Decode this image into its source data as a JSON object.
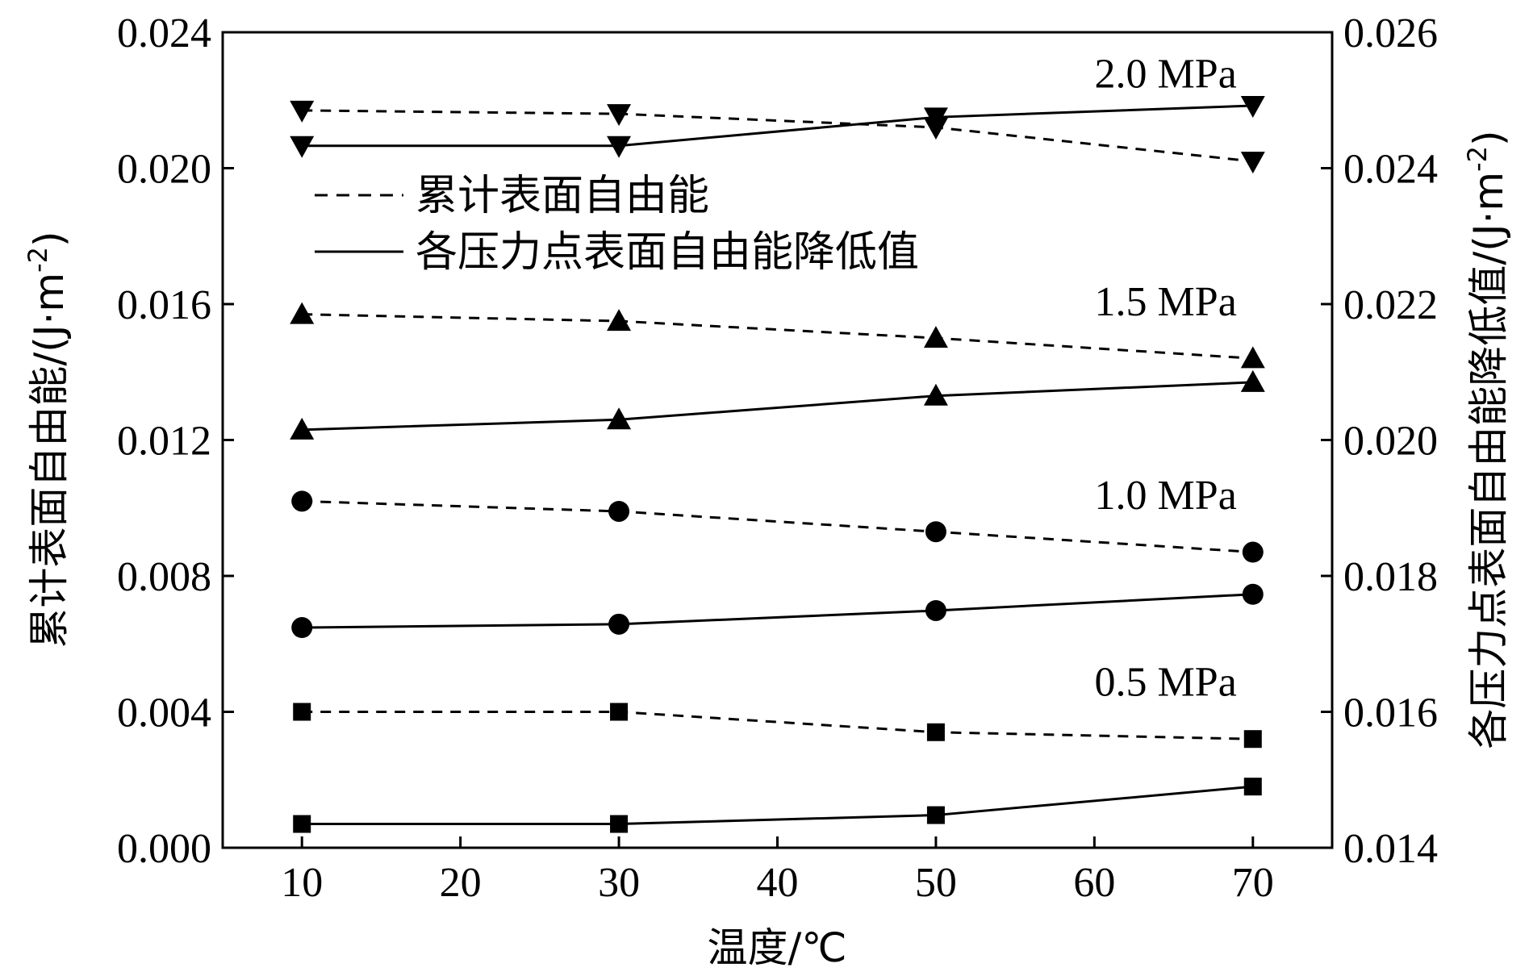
{
  "chart_data": {
    "type": "line",
    "xlabel": "温度/℃",
    "ylabel_left": "累计表面自由能/(J·m",
    "ylabel_left_sup": "-2",
    "ylabel_left_close": ")",
    "ylabel_right": "各压力点表面自由能降低值/(J·m",
    "ylabel_right_sup": "-2",
    "ylabel_right_close": ")",
    "xlim": [
      5,
      75
    ],
    "x_ticks": [
      10,
      20,
      30,
      40,
      50,
      60,
      70
    ],
    "x_tick_labels": [
      "10",
      "20",
      "30",
      "40",
      "50",
      "60",
      "70"
    ],
    "ylim_left": [
      0,
      0.024
    ],
    "y_left_ticks": [
      0,
      0.004,
      0.008,
      0.012,
      0.016,
      0.02,
      0.024
    ],
    "y_left_tick_labels": [
      "0.000",
      "0.004",
      "0.008",
      "0.012",
      "0.016",
      "0.020",
      "0.024"
    ],
    "ylim_right": [
      0.014,
      0.026
    ],
    "y_right_ticks": [
      0.014,
      0.016,
      0.018,
      0.02,
      0.022,
      0.024,
      0.026
    ],
    "y_right_tick_labels": [
      "0.014",
      "0.016",
      "0.018",
      "0.020",
      "0.022",
      "0.024",
      "0.026"
    ],
    "x": [
      10,
      30,
      50,
      70
    ],
    "legend": {
      "position": "upper-left",
      "dashed_label": "累计表面自由能",
      "solid_label": "各压力点表面自由能降低值"
    },
    "annotations": [
      {
        "text": "2.0 MPa",
        "x": 70,
        "y_left": 0.0228
      },
      {
        "text": "1.5 MPa",
        "x": 70,
        "y_left": 0.0161
      },
      {
        "text": "1.0 MPa",
        "x": 70,
        "y_left": 0.0104
      },
      {
        "text": "0.5 MPa",
        "x": 70,
        "y_left": 0.0049
      }
    ],
    "series": [
      {
        "pressure": "0.5 MPa",
        "kind": "cumulative",
        "axis": "left",
        "style": "dashed",
        "marker": "square",
        "values": [
          0.004,
          0.004,
          0.0034,
          0.0032
        ]
      },
      {
        "pressure": "0.5 MPa",
        "kind": "reduction",
        "axis": "right",
        "style": "solid",
        "marker": "square",
        "values": [
          0.01435,
          0.01435,
          0.01448,
          0.0149
        ]
      },
      {
        "pressure": "1.0 MPa",
        "kind": "cumulative",
        "axis": "left",
        "style": "dashed",
        "marker": "circle",
        "values": [
          0.0102,
          0.0099,
          0.0093,
          0.0087
        ]
      },
      {
        "pressure": "1.0 MPa",
        "kind": "reduction",
        "axis": "right",
        "style": "solid",
        "marker": "circle",
        "values": [
          0.01724,
          0.01729,
          0.01749,
          0.01773
        ]
      },
      {
        "pressure": "1.5 MPa",
        "kind": "cumulative",
        "axis": "left",
        "style": "dashed",
        "marker": "triangle-up",
        "values": [
          0.0157,
          0.0155,
          0.015,
          0.0144
        ]
      },
      {
        "pressure": "1.5 MPa",
        "kind": "reduction",
        "axis": "right",
        "style": "solid",
        "marker": "triangle-up",
        "values": [
          0.02015,
          0.0203,
          0.02065,
          0.02085
        ]
      },
      {
        "pressure": "2.0 MPa",
        "kind": "cumulative",
        "axis": "left",
        "style": "dashed",
        "marker": "triangle-down",
        "values": [
          0.0217,
          0.0216,
          0.0212,
          0.0202
        ]
      },
      {
        "pressure": "2.0 MPa",
        "kind": "reduction",
        "axis": "right",
        "style": "solid",
        "marker": "triangle-down",
        "values": [
          0.02433,
          0.02433,
          0.02475,
          0.02492
        ]
      }
    ]
  }
}
